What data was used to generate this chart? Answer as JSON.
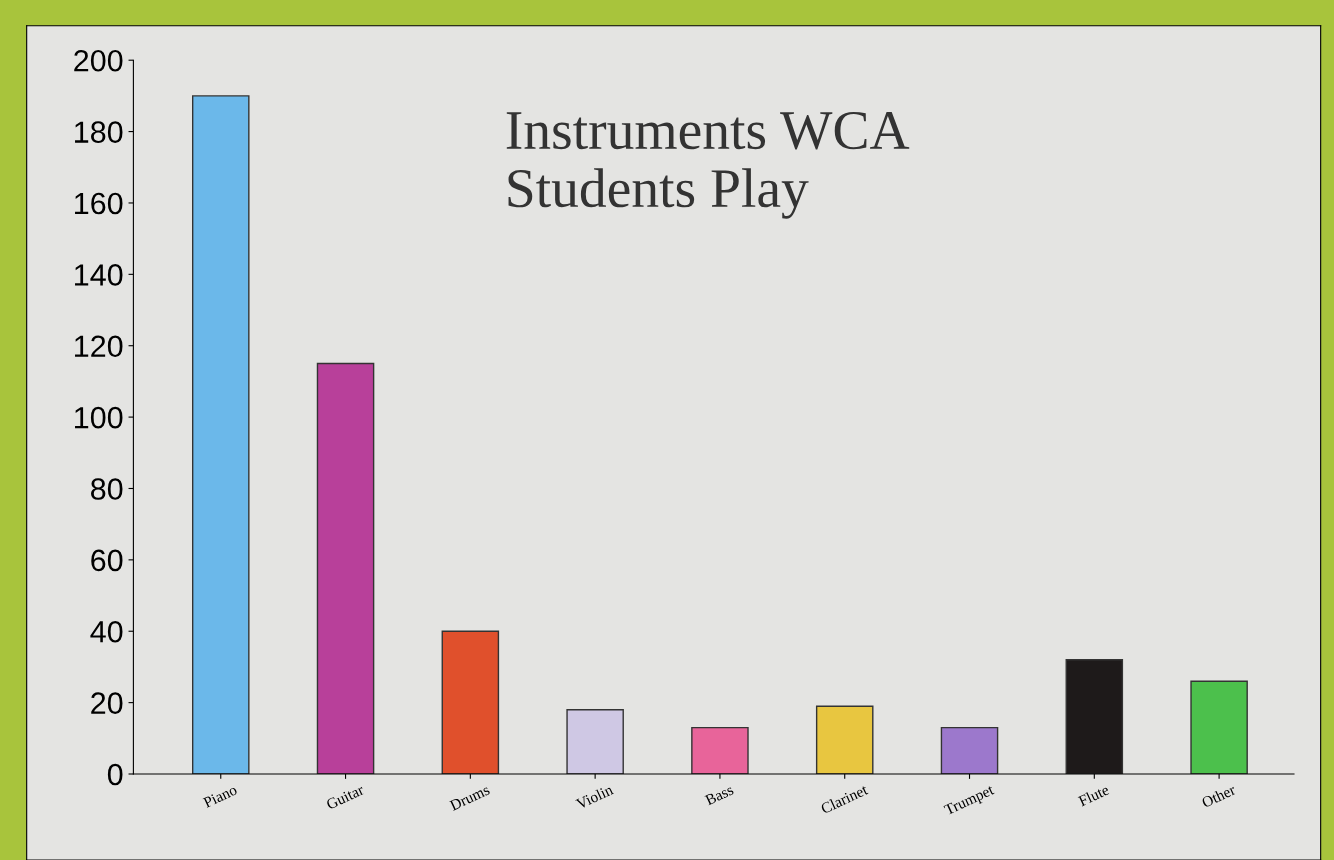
{
  "chart_data": {
    "type": "bar",
    "title": "Instruments WCA\nStudents Play",
    "categories": [
      "Piano",
      "Guitar",
      "Drums",
      "Violin",
      "Bass",
      "Clarinet",
      "Trumpet",
      "Flute",
      "Other"
    ],
    "values": [
      190,
      115,
      40,
      18,
      13,
      19,
      13,
      32,
      26
    ],
    "colors": [
      "#6bb8ea",
      "#b8409a",
      "#e0502c",
      "#cfc8e4",
      "#e8649a",
      "#e8c640",
      "#9c78cc",
      "#1e1a1a",
      "#4cc04c"
    ],
    "ylim": [
      0,
      200
    ],
    "yticks": [
      0,
      20,
      40,
      60,
      80,
      100,
      120,
      140,
      160,
      180,
      200
    ],
    "grid": false
  }
}
